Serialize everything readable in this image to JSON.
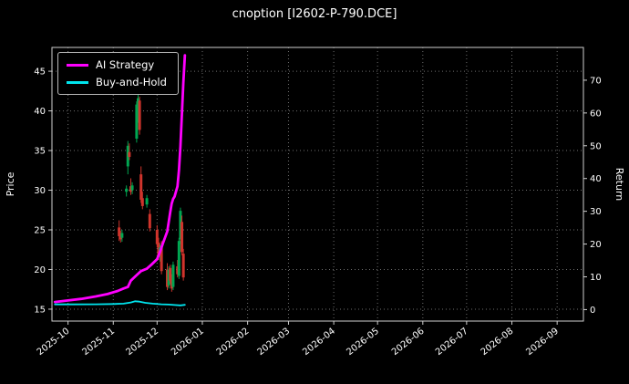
{
  "title": "cnoption [I2602-P-790.DCE]",
  "legend": {
    "items": [
      {
        "label": "AI Strategy",
        "color": "#ff00ff"
      },
      {
        "label": "Buy-and-Hold",
        "color": "#00e5ee"
      }
    ]
  },
  "chart_data": {
    "type": "candlestick+line",
    "title": "cnoption [I2602-P-790.DCE]",
    "background": "#000000",
    "text_color": "#ffffff",
    "grid_color": "#6e6e6e",
    "axis_color": "#cfcfcf",
    "grid": true,
    "legend_position": "upper-left",
    "x_domain": [
      "2025-09-20",
      "2026-09-19"
    ],
    "x_ticks": [
      {
        "label": "2025-10",
        "date": "2025-10-01"
      },
      {
        "label": "2025-11",
        "date": "2025-11-01"
      },
      {
        "label": "2025-12",
        "date": "2025-12-01"
      },
      {
        "label": "2026-01",
        "date": "2026-01-01"
      },
      {
        "label": "2026-02",
        "date": "2026-02-01"
      },
      {
        "label": "2026-03",
        "date": "2026-03-01"
      },
      {
        "label": "2026-04",
        "date": "2026-04-01"
      },
      {
        "label": "2026-05",
        "date": "2026-05-01"
      },
      {
        "label": "2026-06",
        "date": "2026-06-01"
      },
      {
        "label": "2026-07",
        "date": "2026-07-01"
      },
      {
        "label": "2026-08",
        "date": "2026-08-01"
      },
      {
        "label": "2026-09",
        "date": "2026-09-01"
      }
    ],
    "price_axis": {
      "label": "Price",
      "range": [
        13.5,
        48
      ],
      "ticks": [
        15,
        20,
        25,
        30,
        35,
        40,
        45
      ]
    },
    "return_axis": {
      "label": "Return",
      "range": [
        -3.5,
        80
      ],
      "ticks": [
        0,
        10,
        20,
        30,
        40,
        50,
        60,
        70
      ]
    },
    "candles": {
      "up_color": "#00a651",
      "down_color": "#d0342c",
      "data": [
        {
          "date": "2025-11-05",
          "open": 25.3,
          "high": 26.2,
          "low": 23.6,
          "close": 24.2
        },
        {
          "date": "2025-11-06",
          "open": 24.3,
          "high": 24.9,
          "low": 23.4,
          "close": 23.8
        },
        {
          "date": "2025-11-07",
          "open": 24.0,
          "high": 25.0,
          "low": 23.5,
          "close": 24.6
        },
        {
          "date": "2025-11-10",
          "open": 29.8,
          "high": 30.6,
          "low": 29.2,
          "close": 30.2
        },
        {
          "date": "2025-11-11",
          "open": 33.0,
          "high": 36.2,
          "low": 32.0,
          "close": 35.6
        },
        {
          "date": "2025-11-12",
          "open": 34.8,
          "high": 35.9,
          "low": 33.8,
          "close": 34.2
        },
        {
          "date": "2025-11-13",
          "open": 30.5,
          "high": 31.5,
          "low": 29.4,
          "close": 29.8
        },
        {
          "date": "2025-11-14",
          "open": 30.0,
          "high": 31.0,
          "low": 29.5,
          "close": 30.6
        },
        {
          "date": "2025-11-17",
          "open": 36.5,
          "high": 41.2,
          "low": 36.0,
          "close": 40.8
        },
        {
          "date": "2025-11-18",
          "open": 40.0,
          "high": 42.2,
          "low": 38.5,
          "close": 41.6
        },
        {
          "date": "2025-11-19",
          "open": 41.3,
          "high": 41.8,
          "low": 37.0,
          "close": 37.6
        },
        {
          "date": "2025-11-20",
          "open": 32.0,
          "high": 33.0,
          "low": 28.4,
          "close": 28.8
        },
        {
          "date": "2025-11-21",
          "open": 29.0,
          "high": 29.8,
          "low": 27.6,
          "close": 28.0
        },
        {
          "date": "2025-11-24",
          "open": 28.2,
          "high": 29.4,
          "low": 27.8,
          "close": 29.0
        },
        {
          "date": "2025-11-26",
          "open": 27.0,
          "high": 27.6,
          "low": 24.8,
          "close": 25.2
        },
        {
          "date": "2025-12-01",
          "open": 25.0,
          "high": 25.6,
          "low": 22.8,
          "close": 23.2
        },
        {
          "date": "2025-12-02",
          "open": 23.4,
          "high": 24.0,
          "low": 21.2,
          "close": 21.6
        },
        {
          "date": "2025-12-03",
          "open": 21.8,
          "high": 23.2,
          "low": 21.0,
          "close": 22.8
        },
        {
          "date": "2025-12-04",
          "open": 23.0,
          "high": 23.6,
          "low": 19.4,
          "close": 19.8
        },
        {
          "date": "2025-12-08",
          "open": 20.0,
          "high": 20.8,
          "low": 17.4,
          "close": 17.8
        },
        {
          "date": "2025-12-09",
          "open": 18.0,
          "high": 20.4,
          "low": 17.6,
          "close": 20.0
        },
        {
          "date": "2025-12-10",
          "open": 20.2,
          "high": 20.6,
          "low": 18.2,
          "close": 18.6
        },
        {
          "date": "2025-12-11",
          "open": 18.8,
          "high": 19.4,
          "low": 17.2,
          "close": 17.6
        },
        {
          "date": "2025-12-12",
          "open": 17.8,
          "high": 21.0,
          "low": 17.4,
          "close": 20.6
        },
        {
          "date": "2025-12-15",
          "open": 20.4,
          "high": 21.2,
          "low": 19.0,
          "close": 19.4
        },
        {
          "date": "2025-12-16",
          "open": 19.2,
          "high": 24.0,
          "low": 18.8,
          "close": 23.6
        },
        {
          "date": "2025-12-17",
          "open": 23.8,
          "high": 27.8,
          "low": 23.2,
          "close": 27.4
        },
        {
          "date": "2025-12-18",
          "open": 26.0,
          "high": 26.8,
          "low": 21.8,
          "close": 22.2
        },
        {
          "date": "2025-12-19",
          "open": 22.0,
          "high": 22.6,
          "low": 18.6,
          "close": 19.0
        }
      ]
    },
    "series": [
      {
        "name": "AI Strategy",
        "color": "#ff00ff",
        "width": 2.8,
        "axis": "price",
        "points": [
          [
            "2025-09-22",
            15.9
          ],
          [
            "2025-10-01",
            16.1
          ],
          [
            "2025-10-10",
            16.3
          ],
          [
            "2025-10-20",
            16.6
          ],
          [
            "2025-10-28",
            16.9
          ],
          [
            "2025-11-04",
            17.3
          ],
          [
            "2025-11-08",
            17.6
          ],
          [
            "2025-11-11",
            17.8
          ],
          [
            "2025-11-13",
            18.6
          ],
          [
            "2025-11-17",
            19.3
          ],
          [
            "2025-11-20",
            19.8
          ],
          [
            "2025-11-24",
            20.1
          ],
          [
            "2025-11-27",
            20.6
          ],
          [
            "2025-12-01",
            21.3
          ],
          [
            "2025-12-03",
            22.2
          ],
          [
            "2025-12-05",
            23.3
          ],
          [
            "2025-12-08",
            24.8
          ],
          [
            "2025-12-09",
            26.0
          ],
          [
            "2025-12-10",
            27.2
          ],
          [
            "2025-12-11",
            28.3
          ],
          [
            "2025-12-12",
            28.9
          ],
          [
            "2025-12-13",
            29.2
          ],
          [
            "2025-12-15",
            30.5
          ],
          [
            "2025-12-16",
            32.5
          ],
          [
            "2025-12-17",
            35.5
          ],
          [
            "2025-12-18",
            39.5
          ],
          [
            "2025-12-19",
            43.5
          ],
          [
            "2025-12-20",
            47.0
          ]
        ]
      },
      {
        "name": "Buy-and-Hold",
        "color": "#00e5ee",
        "width": 1.8,
        "axis": "price",
        "points": [
          [
            "2025-09-22",
            15.6
          ],
          [
            "2025-10-05",
            15.6
          ],
          [
            "2025-10-20",
            15.62
          ],
          [
            "2025-11-01",
            15.65
          ],
          [
            "2025-11-08",
            15.7
          ],
          [
            "2025-11-13",
            15.85
          ],
          [
            "2025-11-16",
            16.0
          ],
          [
            "2025-11-19",
            15.95
          ],
          [
            "2025-11-23",
            15.8
          ],
          [
            "2025-11-28",
            15.7
          ],
          [
            "2025-12-04",
            15.62
          ],
          [
            "2025-12-09",
            15.58
          ],
          [
            "2025-12-13",
            15.52
          ],
          [
            "2025-12-17",
            15.48
          ],
          [
            "2025-12-20",
            15.55
          ]
        ]
      }
    ]
  }
}
